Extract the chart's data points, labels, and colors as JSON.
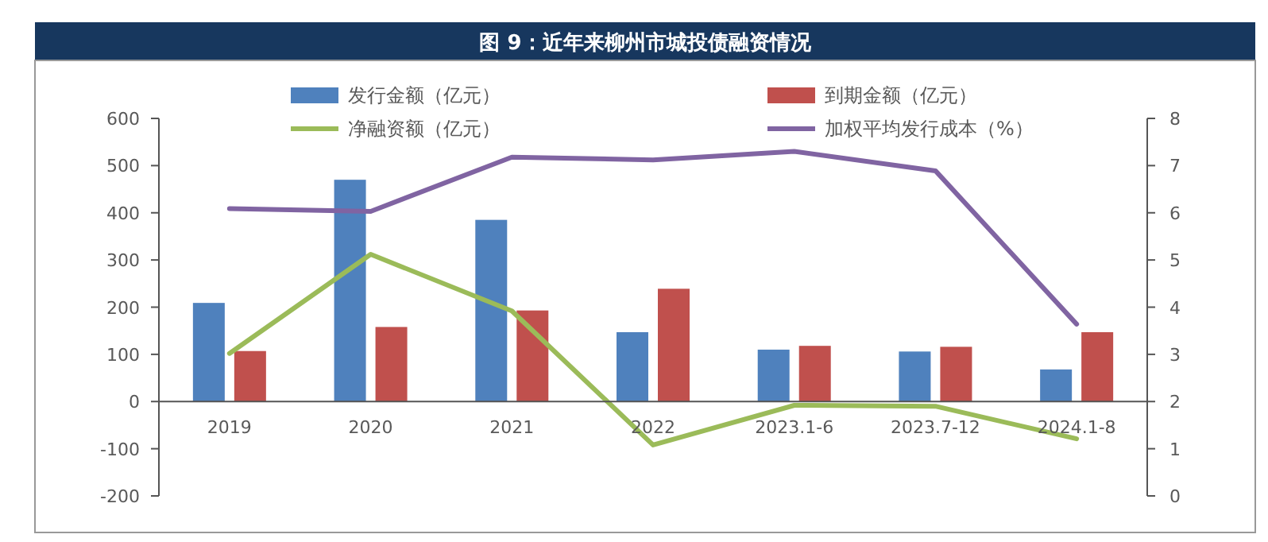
{
  "chart_data": {
    "type": "bar",
    "title": "图 9：近年来柳州市城投债融资情况",
    "categories": [
      "2019",
      "2020",
      "2021",
      "2022",
      "2023.1-6",
      "2023.7-12",
      "2024.1-8"
    ],
    "series": [
      {
        "name": "发行金额（亿元）",
        "color": "#4f81bd",
        "values": [
          209,
          470,
          385,
          147,
          110,
          106,
          68
        ]
      },
      {
        "name": "到期金额（亿元）",
        "color": "#c0504d",
        "values": [
          107,
          158,
          193,
          239,
          118,
          116,
          147
        ]
      },
      {
        "name": "净融资额（亿元）",
        "color": "#9bbb59",
        "type": "line",
        "values": [
          102,
          312,
          192,
          -92,
          -8,
          -10,
          -79
        ]
      },
      {
        "name": "加权平均发行成本（%）",
        "color": "#8064a2",
        "type": "line",
        "axis": "y2",
        "values": [
          6.09,
          6.03,
          7.18,
          7.12,
          7.3,
          6.89,
          3.64
        ]
      }
    ],
    "ylim": [
      -200,
      600
    ],
    "yticks": [
      -200,
      -100,
      0,
      100,
      200,
      300,
      400,
      500,
      600
    ],
    "y2lim": [
      0,
      8
    ],
    "y2ticks": [
      0,
      1,
      2,
      3,
      4,
      5,
      6,
      7,
      8
    ],
    "legend": "top",
    "marker": "none"
  }
}
